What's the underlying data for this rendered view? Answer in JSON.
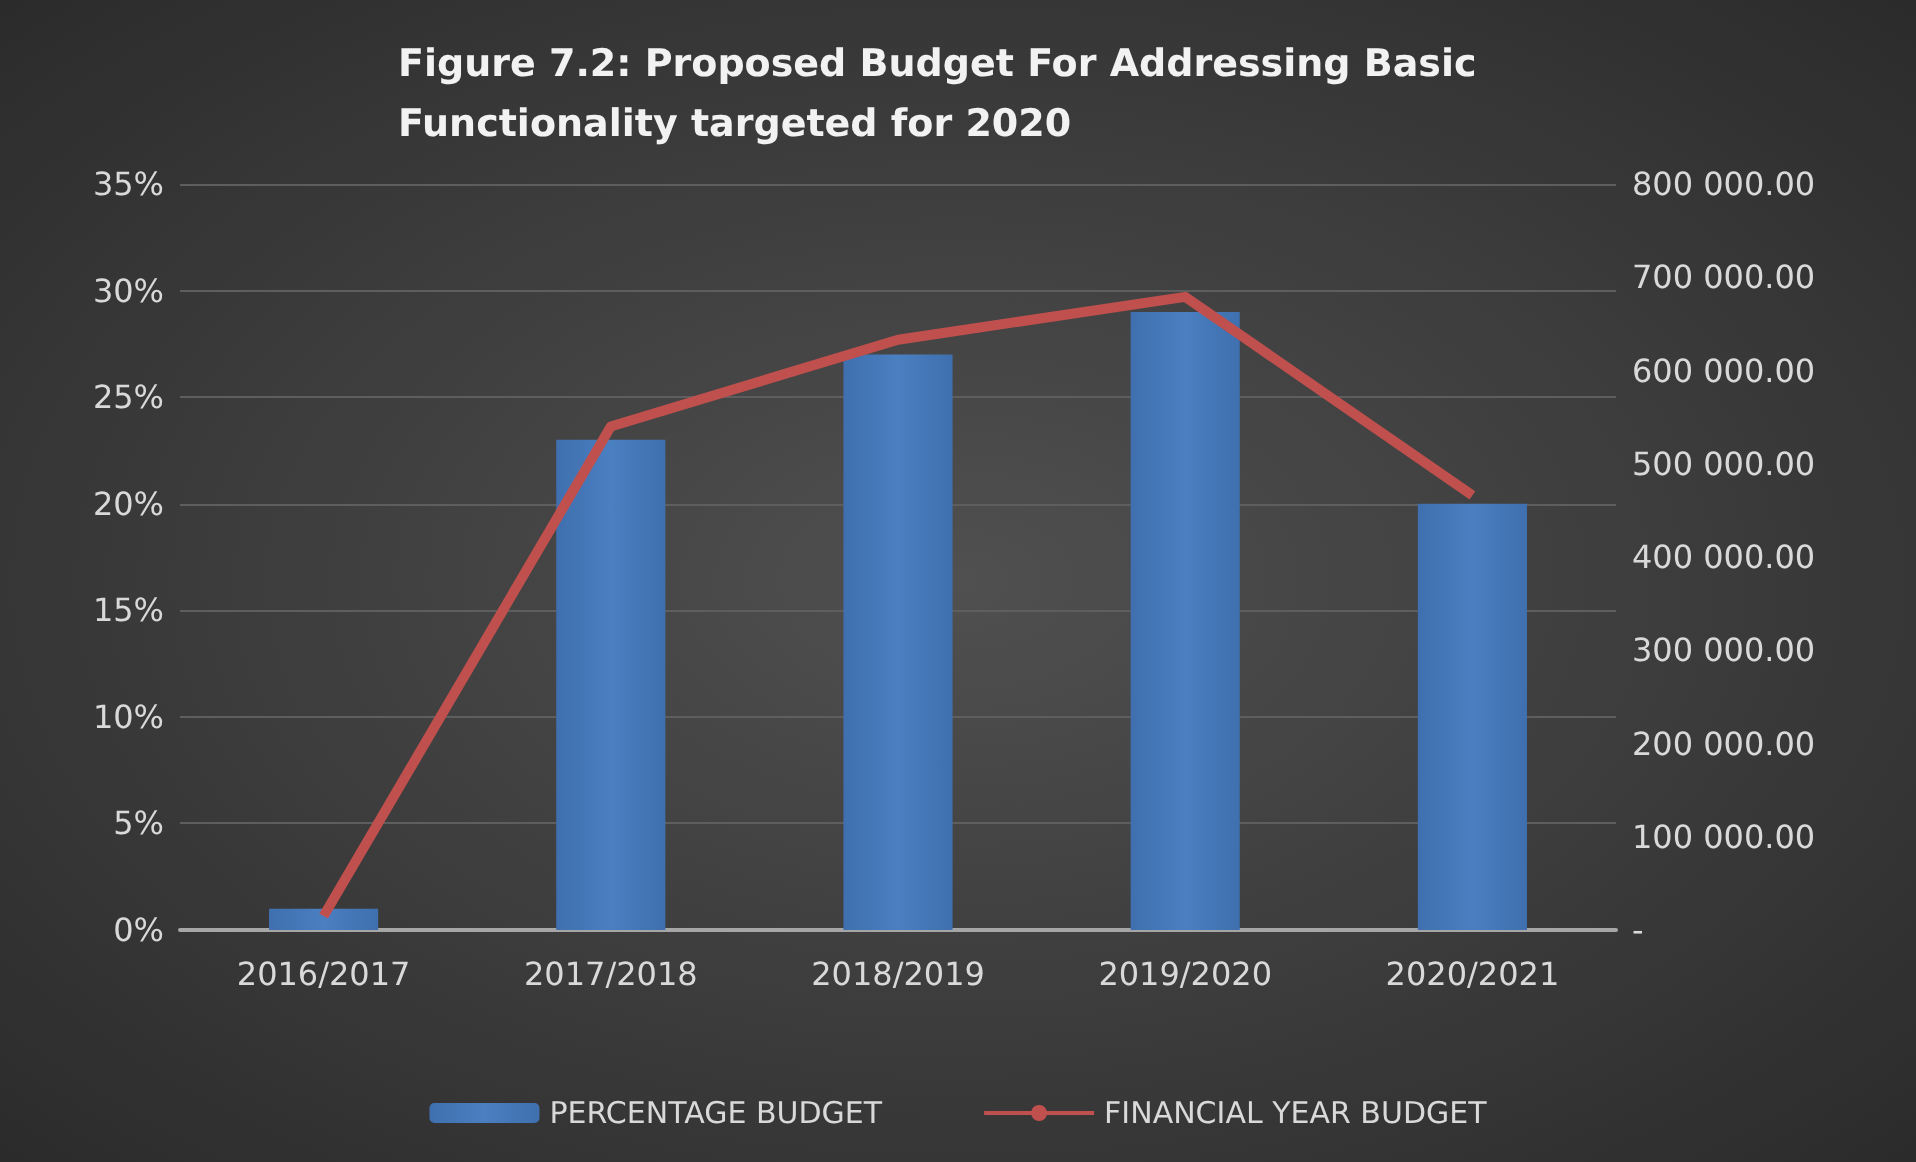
{
  "chart_data": {
    "type": "bar",
    "title": "Figure 7.2: Proposed Budget For Addressing Basic Functionality targeted for 2020",
    "categories": [
      "2016/2017",
      "2017/2018",
      "2018/2019",
      "2019/2020",
      "2020/2021"
    ],
    "series": [
      {
        "name": "PERCENTAGE BUDGET",
        "color": "#4a7fc1",
        "values": [
          1,
          23,
          27,
          29,
          20
        ]
      },
      {
        "name": "FINANCIAL YEAR BUDGET",
        "type": "line",
        "axis": "y2",
        "color": "#c0504d",
        "values": [
          15000,
          540000,
          633000,
          679000,
          466000
        ]
      }
    ],
    "ylim": [
      0,
      35
    ],
    "yticks": [
      {
        "value": 0,
        "label": "0%"
      },
      {
        "value": 5,
        "label": "5%"
      },
      {
        "value": 10,
        "label": "10%"
      },
      {
        "value": 15,
        "label": "15%"
      },
      {
        "value": 20,
        "label": "20%"
      },
      {
        "value": 25,
        "label": "25%"
      },
      {
        "value": 30,
        "label": "30%"
      },
      {
        "value": 35,
        "label": "35%"
      }
    ],
    "y2lim": [
      0,
      800000
    ],
    "y2ticks": [
      {
        "value": 0,
        "label": "-"
      },
      {
        "value": 100000,
        "label": "100 000.00"
      },
      {
        "value": 200000,
        "label": "200 000.00"
      },
      {
        "value": 300000,
        "label": "300 000.00"
      },
      {
        "value": 400000,
        "label": "400 000.00"
      },
      {
        "value": 500000,
        "label": "500 000.00"
      },
      {
        "value": 600000,
        "label": "600 000.00"
      },
      {
        "value": 700000,
        "label": "700 000.00"
      },
      {
        "value": 800000,
        "label": "800 000.00"
      }
    ],
    "grid": "y",
    "legend": "bottom",
    "marker": "none"
  }
}
